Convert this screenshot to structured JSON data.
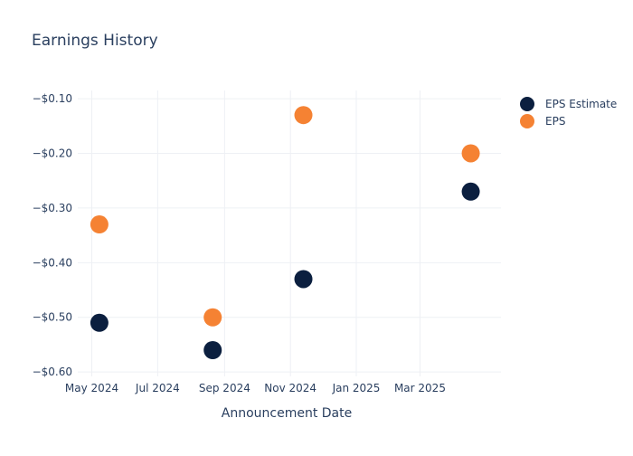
{
  "chart_data": {
    "type": "scatter",
    "title": "Earnings History",
    "xlabel": "Announcement Date",
    "ylabel": "",
    "x_ticks": [
      "May 2024",
      "Jul 2024",
      "Sep 2024",
      "Nov 2024",
      "Jan 2025",
      "Mar 2025"
    ],
    "x_tick_dates": [
      "2024-05-01",
      "2024-07-01",
      "2024-09-01",
      "2024-11-01",
      "2025-01-01",
      "2025-03-01"
    ],
    "x_range": [
      "2024-04-18",
      "2025-05-15"
    ],
    "y_ticks": [
      -0.1,
      -0.2,
      -0.3,
      -0.4,
      -0.5,
      -0.6
    ],
    "y_tick_labels": [
      "−$0.10",
      "−$0.20",
      "−$0.30",
      "−$0.40",
      "−$0.50",
      "−$0.60"
    ],
    "ylim": [
      -0.608,
      -0.085
    ],
    "grid": true,
    "legend_position": "top-right",
    "series": [
      {
        "name": "EPS Estimate",
        "color": "#0b1f3f",
        "points": [
          {
            "x": "2024-05-08",
            "y": -0.51
          },
          {
            "x": "2024-08-21",
            "y": -0.56
          },
          {
            "x": "2024-11-13",
            "y": -0.43
          },
          {
            "x": "2025-04-17",
            "y": -0.27
          }
        ]
      },
      {
        "name": "EPS",
        "color": "#f58233",
        "points": [
          {
            "x": "2024-05-08",
            "y": -0.33
          },
          {
            "x": "2024-08-21",
            "y": -0.5
          },
          {
            "x": "2024-11-13",
            "y": -0.13
          },
          {
            "x": "2025-04-17",
            "y": -0.2
          }
        ]
      }
    ]
  }
}
